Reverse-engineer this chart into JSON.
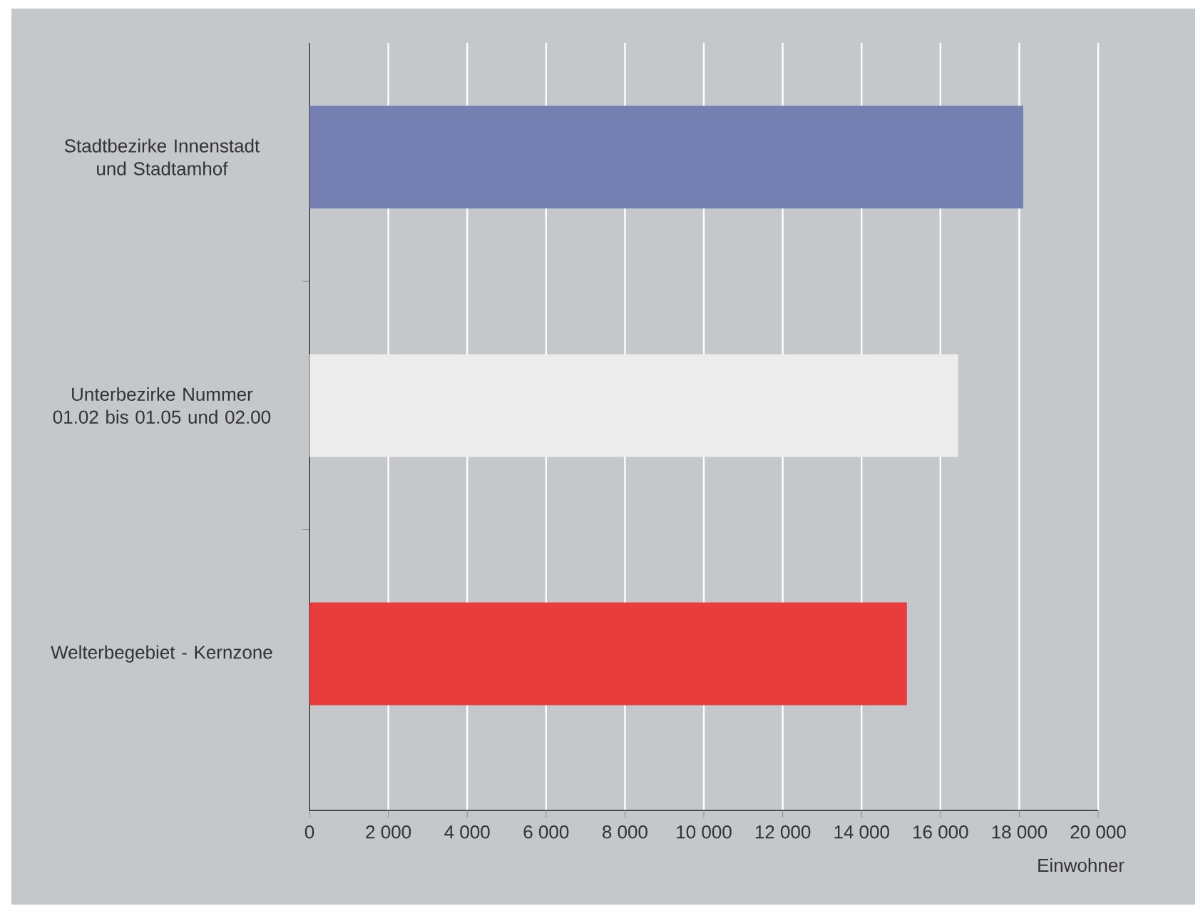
{
  "chart_data": {
    "type": "bar",
    "orientation": "horizontal",
    "categories": [
      "Stadtbezirke Innenstadt und Stadtamhof",
      "Unterbezirke Nummer 01.02 bis 01.05 und 02.00",
      "Welterbegebiet - Kernzone"
    ],
    "values": [
      18100,
      16450,
      15150
    ],
    "colors": [
      "#7480b2",
      "#ececec",
      "#e83c3d"
    ],
    "xlabel": "Einwohner",
    "xlim": [
      0,
      20000
    ],
    "xticks": [
      0,
      {
        "value": 2000,
        "label": "2 000"
      },
      {
        "value": 4000,
        "label": "4 000"
      },
      {
        "value": 6000,
        "label": "6 000"
      },
      {
        "value": 8000,
        "label": "8 000"
      },
      {
        "value": 10000,
        "label": "10 000"
      },
      {
        "value": 12000,
        "label": "12 000"
      },
      {
        "value": 14000,
        "label": "14 000"
      },
      {
        "value": 16000,
        "label": "16 000"
      },
      {
        "value": 18000,
        "label": "18 000"
      },
      {
        "value": 20000,
        "label": "20 000"
      }
    ],
    "grid": "x"
  }
}
